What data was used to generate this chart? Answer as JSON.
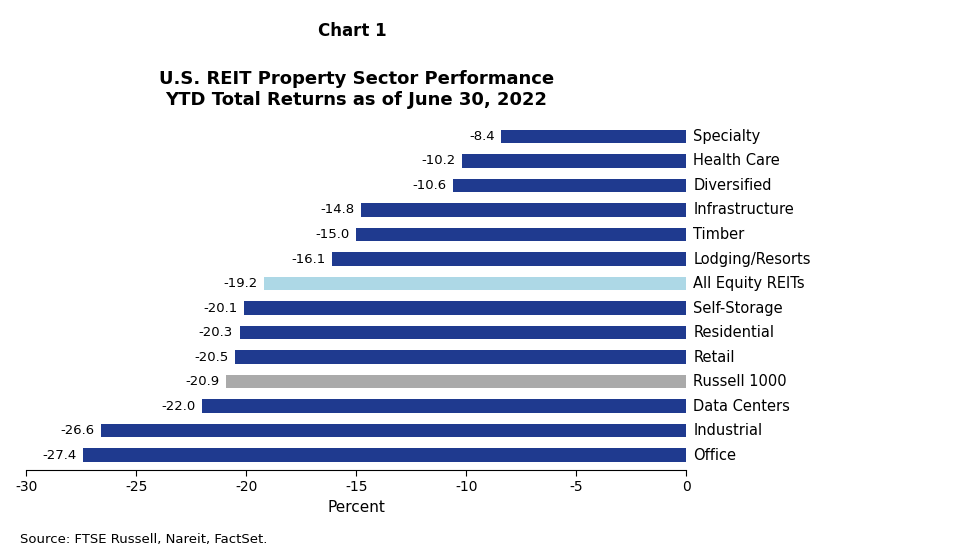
{
  "chart_label": "Chart 1",
  "title": "U.S. REIT Property Sector Performance\nYTD Total Returns as of June 30, 2022",
  "xlabel": "Percent",
  "source": "Source: FTSE Russell, Nareit, FactSet.",
  "categories": [
    "Office",
    "Industrial",
    "Data Centers",
    "Russell 1000",
    "Retail",
    "Residential",
    "Self-Storage",
    "All Equity REITs",
    "Lodging/Resorts",
    "Timber",
    "Infrastructure",
    "Diversified",
    "Health Care",
    "Specialty"
  ],
  "values": [
    -27.4,
    -26.6,
    -22.0,
    -20.9,
    -20.5,
    -20.3,
    -20.1,
    -19.2,
    -16.1,
    -15.0,
    -14.8,
    -10.6,
    -10.2,
    -8.4
  ],
  "colors": [
    "#1F3A8F",
    "#1F3A8F",
    "#1F3A8F",
    "#AAAAAA",
    "#1F3A8F",
    "#1F3A8F",
    "#1F3A8F",
    "#ADD8E6",
    "#1F3A8F",
    "#1F3A8F",
    "#1F3A8F",
    "#1F3A8F",
    "#1F3A8F",
    "#1F3A8F"
  ],
  "xlim": [
    -30,
    0
  ],
  "xticks": [
    -30,
    -25,
    -20,
    -15,
    -10,
    -5,
    0
  ],
  "bar_height": 0.55,
  "background_color": "#FFFFFF",
  "value_fontsize": 9.5,
  "title_fontsize": 13,
  "chart_label_fontsize": 12,
  "source_fontsize": 9.5,
  "tick_fontsize": 10,
  "category_fontsize": 10.5,
  "xlabel_fontsize": 11
}
